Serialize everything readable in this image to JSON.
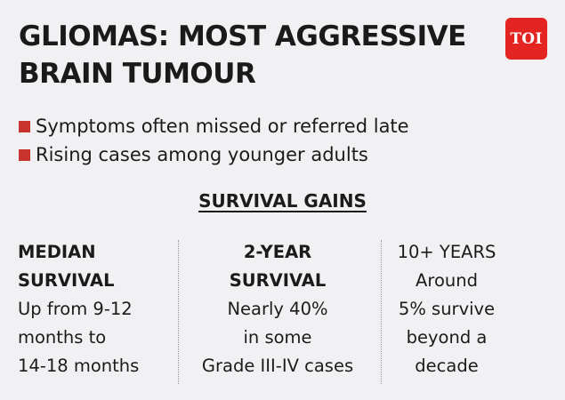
{
  "header": {
    "title_line1": "GLIOMAS: MOST AGGRESSIVE",
    "title_line2": "BRAIN TUMOUR",
    "logo_text": "TOI",
    "logo_color": "#e42420"
  },
  "bullets": [
    "Symptoms often missed or referred late",
    "Rising cases among younger adults"
  ],
  "bullet_color": "#c8332e",
  "section_title": "SURVIVAL GAINS",
  "stats": [
    {
      "heading": [
        "MEDIAN",
        "SURVIVAL"
      ],
      "body": [
        "Up from 9-12",
        "months to",
        "14-18 months"
      ]
    },
    {
      "heading": [
        "2-YEAR",
        "SURVIVAL"
      ],
      "body": [
        "Nearly 40%",
        "in some",
        "Grade III-IV cases"
      ]
    },
    {
      "heading": [
        "10+ YEARS"
      ],
      "body": [
        "Around",
        "5% survive",
        "beyond a",
        "decade"
      ]
    }
  ]
}
